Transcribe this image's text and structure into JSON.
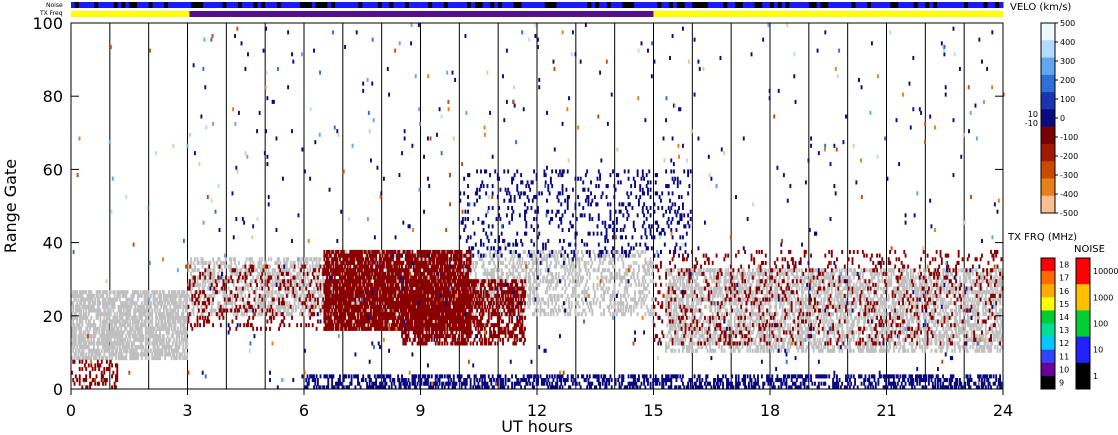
{
  "chart_data": {
    "type": "heatmap",
    "title": "",
    "xlabel": "UT hours",
    "ylabel": "Range Gate",
    "xlim": [
      0,
      24
    ],
    "ylim": [
      0,
      100
    ],
    "x_ticks": [
      "0",
      "3",
      "6",
      "9",
      "12",
      "15",
      "18",
      "21",
      "24"
    ],
    "y_ticks": [
      "0",
      "20",
      "40",
      "60",
      "80",
      "100"
    ],
    "grid": "vertical lines every hour",
    "top_strips": [
      {
        "label": "Noise",
        "from_hour": 0,
        "to_hour": 24,
        "color": "#1a1aff"
      },
      {
        "label": "TX Freq",
        "segments": [
          {
            "from_hour": 0,
            "to_hour": 3.05,
            "color": "#ffff00"
          },
          {
            "from_hour": 3.05,
            "to_hour": 15,
            "color": "#55108c"
          },
          {
            "from_hour": 15,
            "to_hour": 24,
            "color": "#ffff00"
          }
        ]
      }
    ],
    "velocity_colorbar": {
      "label": "VELO (km/s)",
      "ticks": [
        "500",
        "400",
        "300",
        "200",
        "100",
        "0",
        "-100",
        "-200",
        "-300",
        "-400",
        "-500"
      ],
      "side_ticks": [
        "10",
        "-10"
      ],
      "colors": [
        "#eef6ff",
        "#b3dbff",
        "#5fa8f0",
        "#2f6fd8",
        "#1a33b0",
        "#0a0a80",
        "#7a0000",
        "#a01a00",
        "#c84a00",
        "#e8801a",
        "#f8c090"
      ]
    },
    "txfreq_colorbar": {
      "label": "TX FRQ (MHz)",
      "ticks": [
        "18",
        "17",
        "16",
        "15",
        "14",
        "13",
        "12",
        "11",
        "10",
        "9"
      ],
      "colors": [
        "#ff0000",
        "#ff6a00",
        "#ffaa00",
        "#ffff00",
        "#00cc33",
        "#00dd99",
        "#00c8ff",
        "#3344ff",
        "#6a0099",
        "#000000"
      ]
    },
    "noise_colorbar": {
      "label": "NOISE",
      "ticks": [
        "10000",
        "1000",
        "100",
        "10",
        "1"
      ],
      "colors": [
        "#ff0000",
        "#ffc000",
        "#00cc33",
        "#2222ff",
        "#000000"
      ]
    },
    "series": [
      {
        "name": "ground scatter",
        "color": "#c0c0c0",
        "regions": [
          {
            "x": [
              0,
              3
            ],
            "y": [
              8,
              27
            ]
          },
          {
            "x": [
              3,
              6.3
            ],
            "y": [
              20,
              36
            ]
          },
          {
            "x": [
              6.3,
              15
            ],
            "y": [
              20,
              38
            ]
          },
          {
            "x": [
              15.3,
              24
            ],
            "y": [
              10,
              33
            ]
          }
        ]
      },
      {
        "name": "negative velocity",
        "color": "#8a0000",
        "regions": [
          {
            "x": [
              6.5,
              10.3
            ],
            "y": [
              16,
              38
            ]
          },
          {
            "x": [
              8.5,
              11.7
            ],
            "y": [
              12,
              30
            ]
          },
          {
            "x": [
              0,
              1.2
            ],
            "y": [
              0,
              8
            ]
          },
          {
            "x": [
              3,
              9
            ],
            "y": [
              16,
              34
            ]
          },
          {
            "x": [
              15,
              24
            ],
            "y": [
              12,
              38
            ]
          }
        ]
      },
      {
        "name": "positive velocity",
        "color": "#0a0a80",
        "regions": [
          {
            "x": [
              6,
              24
            ],
            "y": [
              0,
              4
            ]
          },
          {
            "x": [
              10,
              16
            ],
            "y": [
              36,
              60
            ]
          },
          {
            "x": [
              3,
              24
            ],
            "y": [
              0,
              100
            ]
          }
        ]
      }
    ]
  }
}
